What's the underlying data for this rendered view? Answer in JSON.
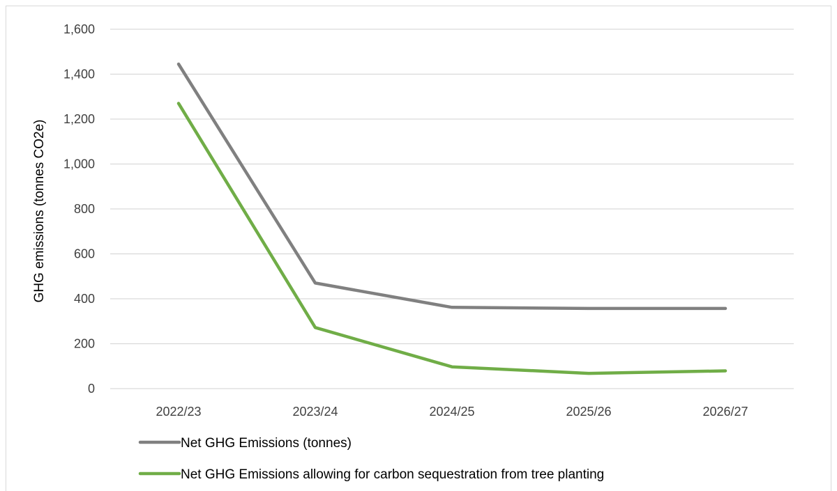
{
  "chart_data": {
    "type": "line",
    "title": "",
    "xlabel": "",
    "ylabel": "GHG emissions (tonnes CO2e)",
    "categories": [
      "2022/23",
      "2023/24",
      "2024/25",
      "2025/26",
      "2026/27"
    ],
    "ylim": [
      0,
      1600
    ],
    "yticks": [
      0,
      200,
      400,
      600,
      800,
      1000,
      1200,
      1400,
      1600
    ],
    "ytick_labels": [
      "0",
      "200",
      "400",
      "600",
      "800",
      "1,000",
      "1,200",
      "1,400",
      "1,600"
    ],
    "grid": "horizontal",
    "legend_position": "bottom",
    "series": [
      {
        "name": "Net GHG Emissions (tonnes)",
        "color": "#808080",
        "values": [
          1445,
          470,
          362,
          357,
          357
        ]
      },
      {
        "name": "Net GHG Emissions allowing for carbon sequestration from tree planting",
        "color": "#70ad47",
        "values": [
          1270,
          272,
          97,
          68,
          79
        ]
      }
    ]
  }
}
